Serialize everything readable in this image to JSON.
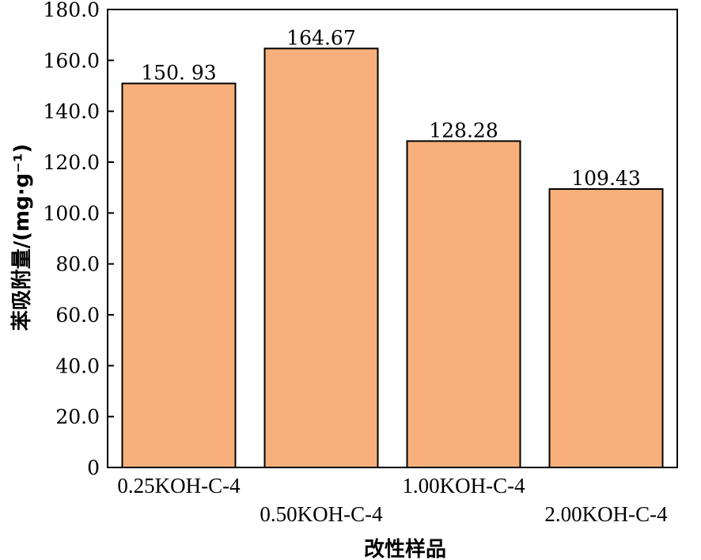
{
  "chart_data": {
    "type": "bar",
    "categories": [
      "0.25KOH-C-4",
      "0.50KOH-C-4",
      "1.00KOH-C-4",
      "2.00KOH-C-4"
    ],
    "values": [
      150.93,
      164.67,
      128.28,
      109.43
    ],
    "data_labels": [
      "150. 93",
      "164.67",
      "128.28",
      "109.43"
    ],
    "xlabel": "改性样品",
    "ylabel": "苯吸附量/(mg·g⁻¹)",
    "ylim": [
      0,
      180
    ],
    "yticks": [
      0,
      20,
      40,
      60,
      80,
      100,
      120,
      140,
      160,
      180
    ],
    "ytick_labels": [
      "0",
      "20.0",
      "40.0",
      "60.0",
      "80.0",
      "100.0",
      "120.0",
      "140.0",
      "160.0",
      "180.0"
    ],
    "bar_color": "#F7B07C",
    "grid": false,
    "legend": "none"
  }
}
